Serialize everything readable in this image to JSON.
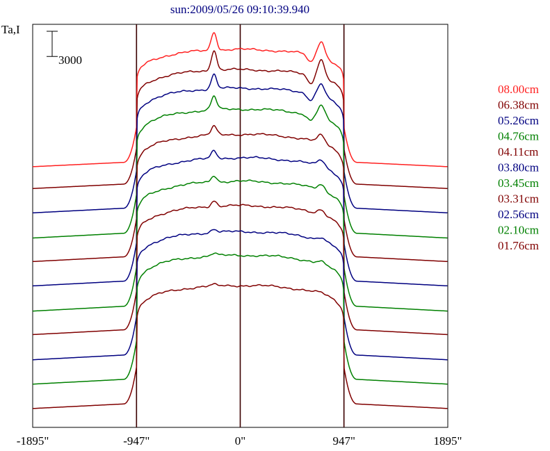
{
  "chart_data": {
    "type": "line",
    "title": "sun:2009/05/26 09:10:39.940",
    "ylabel": "Ta,I",
    "scale_bar_label": "3000",
    "scale_bar_value": 3000,
    "xlim": [
      -1895,
      1895
    ],
    "x_ticks": [
      {
        "value": -1895,
        "label": "-1895\""
      },
      {
        "value": -947,
        "label": "-947\""
      },
      {
        "value": 0,
        "label": "0\""
      },
      {
        "value": 947,
        "label": "947\""
      },
      {
        "value": 1895,
        "label": "1895\""
      }
    ],
    "vertical_lines_x": [
      -947,
      0,
      947
    ],
    "series": [
      {
        "name": "08.00cm",
        "color": "#ff2020",
        "baseline": 0,
        "plateau": 14000,
        "plage": 2200,
        "peak": 1
      },
      {
        "name": "06.38cm",
        "color": "#800000",
        "baseline": -2600,
        "plateau": 11600,
        "plage": 2400,
        "peak": 1
      },
      {
        "name": "05.26cm",
        "color": "#000080",
        "baseline": -5500,
        "plateau": 9400,
        "plage": 1700,
        "peak": 1
      },
      {
        "name": "04.76cm",
        "color": "#008000",
        "baseline": -8500,
        "plateau": 6900,
        "plage": 1600,
        "peak": 1
      },
      {
        "name": "04.11cm",
        "color": "#800000",
        "baseline": -11300,
        "plateau": 3900,
        "plage": 1000,
        "peak": 0
      },
      {
        "name": "03.80cm",
        "color": "#000080",
        "baseline": -14200,
        "plateau": 1100,
        "plage": 900,
        "peak": 0
      },
      {
        "name": "03.45cm",
        "color": "#008000",
        "baseline": -17200,
        "plateau": -1700,
        "plage": 800,
        "peak": 0
      },
      {
        "name": "03.31cm",
        "color": "#800000",
        "baseline": -20000,
        "plateau": -4600,
        "plage": 700,
        "peak": 0
      },
      {
        "name": "02.56cm",
        "color": "#000080",
        "baseline": -23000,
        "plateau": -7700,
        "plage": 400,
        "peak": 0
      },
      {
        "name": "02.10cm",
        "color": "#008000",
        "baseline": -25900,
        "plateau": -10500,
        "plage": 300,
        "peak": 0
      },
      {
        "name": "01.76cm",
        "color": "#800000",
        "baseline": -28800,
        "plateau": -14100,
        "plage": 150,
        "peak": 0
      }
    ],
    "ylim": [
      -31000,
      17000
    ],
    "colors": {
      "axis": "#000000",
      "divider": "#3a0000",
      "title": "#000080"
    }
  }
}
